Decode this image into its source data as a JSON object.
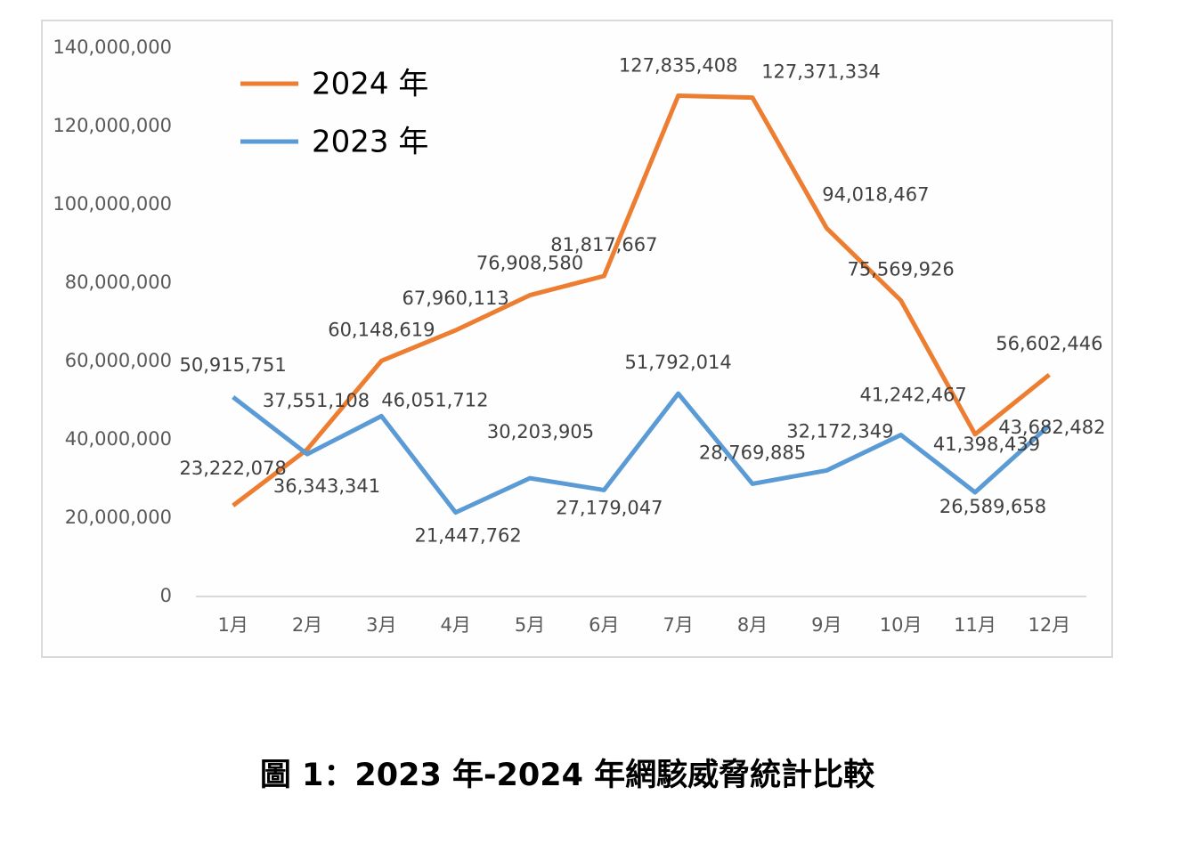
{
  "chart_data": {
    "type": "line",
    "categories": [
      "1月",
      "2月",
      "3月",
      "4月",
      "5月",
      "6月",
      "7月",
      "8月",
      "9月",
      "10月",
      "11月",
      "12月"
    ],
    "series": [
      {
        "name": "2024 年",
        "color": "#ed7d31",
        "values": [
          23222078,
          37551108,
          60148619,
          67960113,
          76908580,
          81817667,
          127835408,
          127371334,
          94018467,
          75569926,
          41398439,
          56602446
        ],
        "value_labels": [
          "23,222,078",
          "37,551,108",
          "60,148,619",
          "67,960,113",
          "76,908,580",
          "81,817,667",
          "127,835,408",
          "127,371,334",
          "94,018,467",
          "75,569,926",
          "41,398,439",
          "56,602,446"
        ]
      },
      {
        "name": "2023 年",
        "color": "#5b9bd5",
        "values": [
          50915751,
          36343341,
          46051712,
          21447762,
          30203905,
          27179047,
          51792014,
          28769885,
          32172349,
          41242467,
          26589658,
          43682482
        ],
        "value_labels": [
          "50,915,751",
          "36,343,341",
          "46,051,712",
          "21,447,762",
          "30,203,905",
          "27,179,047",
          "51,792,014",
          "28,769,885",
          "32,172,349",
          "41,242,467",
          "26,589,658",
          "43,682,482"
        ]
      }
    ],
    "ylim": [
      0,
      140000000
    ],
    "yticks": [
      0,
      {
        "value": 20000000,
        "label": "20,000,000"
      },
      {
        "value": 40000000,
        "label": "40,000,000"
      },
      {
        "value": 60000000,
        "label": "60,000,000"
      },
      {
        "value": 80000000,
        "label": "80,000,000"
      },
      {
        "value": 100000000,
        "label": "100,000,000"
      },
      {
        "value": 120000000,
        "label": "120,000,000"
      },
      {
        "value": 140000000,
        "label": "140,000,000"
      }
    ],
    "grid": false,
    "legend": "upper left"
  },
  "caption": "圖 1：2023 年-2024 年網駭威脅統計比較"
}
